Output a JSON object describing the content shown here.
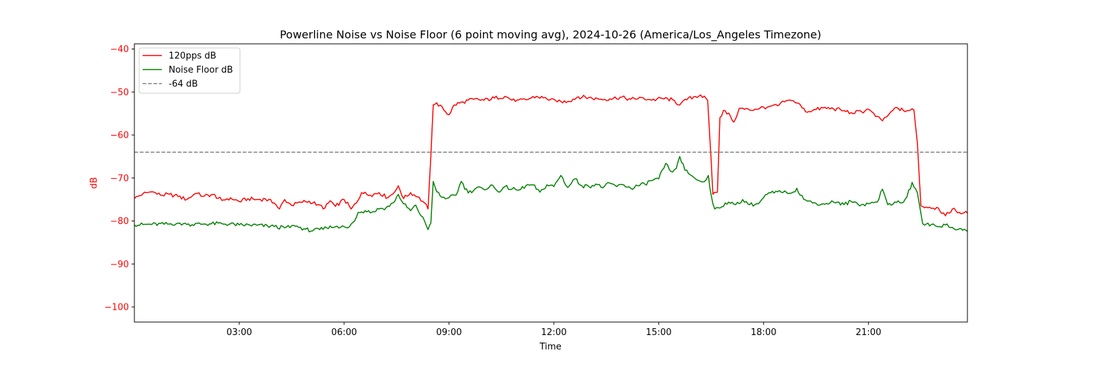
{
  "chart_data": {
    "type": "line",
    "title": "Powerline Noise vs Noise Floor (6 point moving avg), 2024-10-26 (America/Los_Angeles Timezone)",
    "xlabel": "Time",
    "ylabel": "dB",
    "x_unit": "hours of day",
    "xlim": [
      0,
      23.83
    ],
    "ylim": [
      -103.5,
      -38.8
    ],
    "x_ticks": [
      {
        "value": 3,
        "label": "03:00"
      },
      {
        "value": 6,
        "label": "06:00"
      },
      {
        "value": 9,
        "label": "09:00"
      },
      {
        "value": 12,
        "label": "12:00"
      },
      {
        "value": 15,
        "label": "15:00"
      },
      {
        "value": 18,
        "label": "18:00"
      },
      {
        "value": 21,
        "label": "21:00"
      }
    ],
    "y_ticks": [
      {
        "value": -40,
        "label": "−40"
      },
      {
        "value": -50,
        "label": "−50"
      },
      {
        "value": -60,
        "label": "−60"
      },
      {
        "value": -70,
        "label": "−70"
      },
      {
        "value": -80,
        "label": "−80"
      },
      {
        "value": -90,
        "label": "−90"
      },
      {
        "value": -100,
        "label": "−100"
      }
    ],
    "grid": false,
    "legend_position": "top-left",
    "colors": {
      "ylabel": "#ff0000",
      "axis": "#000000"
    },
    "series": [
      {
        "name": "120pps dB",
        "color": "#ff0000",
        "style": "solid",
        "points": [
          [
            0.0,
            -74.8
          ],
          [
            0.25,
            -73.6
          ],
          [
            0.5,
            -73.2
          ],
          [
            0.75,
            -74.0
          ],
          [
            1.0,
            -73.8
          ],
          [
            1.25,
            -74.3
          ],
          [
            1.5,
            -75.0
          ],
          [
            1.75,
            -73.6
          ],
          [
            2.0,
            -74.2
          ],
          [
            2.25,
            -73.8
          ],
          [
            2.5,
            -75.2
          ],
          [
            2.75,
            -74.6
          ],
          [
            3.0,
            -75.5
          ],
          [
            3.25,
            -74.8
          ],
          [
            3.5,
            -75.0
          ],
          [
            3.75,
            -74.9
          ],
          [
            4.0,
            -75.8
          ],
          [
            4.15,
            -77.2
          ],
          [
            4.3,
            -75.0
          ],
          [
            4.5,
            -76.4
          ],
          [
            4.75,
            -75.6
          ],
          [
            5.0,
            -75.4
          ],
          [
            5.25,
            -76.2
          ],
          [
            5.45,
            -77.0
          ],
          [
            5.6,
            -75.3
          ],
          [
            5.75,
            -76.6
          ],
          [
            6.0,
            -75.0
          ],
          [
            6.2,
            -77.2
          ],
          [
            6.35,
            -75.8
          ],
          [
            6.5,
            -73.4
          ],
          [
            6.75,
            -74.0
          ],
          [
            7.0,
            -73.4
          ],
          [
            7.25,
            -74.6
          ],
          [
            7.45,
            -73.2
          ],
          [
            7.55,
            -71.8
          ],
          [
            7.7,
            -74.8
          ],
          [
            7.9,
            -73.4
          ],
          [
            8.1,
            -74.4
          ],
          [
            8.3,
            -75.8
          ],
          [
            8.4,
            -77.2
          ],
          [
            8.48,
            -65.0
          ],
          [
            8.55,
            -53.0
          ],
          [
            8.65,
            -52.5
          ],
          [
            8.85,
            -54.2
          ],
          [
            9.0,
            -55.3
          ],
          [
            9.15,
            -53.0
          ],
          [
            9.4,
            -52.3
          ],
          [
            9.7,
            -51.7
          ],
          [
            10.0,
            -51.9
          ],
          [
            10.3,
            -51.4
          ],
          [
            10.6,
            -51.0
          ],
          [
            10.9,
            -52.2
          ],
          [
            11.2,
            -51.8
          ],
          [
            11.5,
            -51.0
          ],
          [
            11.8,
            -51.6
          ],
          [
            12.1,
            -52.3
          ],
          [
            12.4,
            -52.2
          ],
          [
            12.7,
            -51.1
          ],
          [
            13.0,
            -51.3
          ],
          [
            13.3,
            -51.7
          ],
          [
            13.6,
            -51.6
          ],
          [
            13.9,
            -51.2
          ],
          [
            14.2,
            -51.7
          ],
          [
            14.5,
            -51.3
          ],
          [
            14.8,
            -51.9
          ],
          [
            15.1,
            -51.5
          ],
          [
            15.4,
            -51.8
          ],
          [
            15.6,
            -53.0
          ],
          [
            15.8,
            -51.8
          ],
          [
            16.0,
            -51.1
          ],
          [
            16.2,
            -50.7
          ],
          [
            16.4,
            -52.0
          ],
          [
            16.5,
            -66.0
          ],
          [
            16.55,
            -73.8
          ],
          [
            16.68,
            -73.3
          ],
          [
            16.75,
            -56.0
          ],
          [
            16.85,
            -54.3
          ],
          [
            17.05,
            -55.6
          ],
          [
            17.15,
            -57.0
          ],
          [
            17.3,
            -53.8
          ],
          [
            17.6,
            -54.2
          ],
          [
            17.9,
            -53.7
          ],
          [
            18.15,
            -53.4
          ],
          [
            18.4,
            -53.2
          ],
          [
            18.6,
            -52.3
          ],
          [
            18.8,
            -52.0
          ],
          [
            19.0,
            -52.6
          ],
          [
            19.2,
            -54.6
          ],
          [
            19.4,
            -54.3
          ],
          [
            19.7,
            -53.7
          ],
          [
            20.0,
            -53.9
          ],
          [
            20.3,
            -54.3
          ],
          [
            20.5,
            -54.8
          ],
          [
            20.8,
            -54.6
          ],
          [
            21.0,
            -54.0
          ],
          [
            21.2,
            -55.7
          ],
          [
            21.4,
            -56.7
          ],
          [
            21.6,
            -55.0
          ],
          [
            21.8,
            -53.6
          ],
          [
            22.0,
            -54.3
          ],
          [
            22.3,
            -54.2
          ],
          [
            22.4,
            -62.0
          ],
          [
            22.5,
            -76.5
          ],
          [
            22.75,
            -76.8
          ],
          [
            23.0,
            -77.0
          ],
          [
            23.2,
            -78.8
          ],
          [
            23.4,
            -77.2
          ],
          [
            23.6,
            -78.0
          ],
          [
            23.83,
            -78.2
          ]
        ]
      },
      {
        "name": "Noise Floor dB",
        "color": "#008000",
        "style": "solid",
        "points": [
          [
            0.0,
            -80.9
          ],
          [
            0.5,
            -80.8
          ],
          [
            1.0,
            -80.7
          ],
          [
            1.25,
            -80.5
          ],
          [
            1.5,
            -80.8
          ],
          [
            2.0,
            -80.7
          ],
          [
            2.5,
            -80.6
          ],
          [
            3.0,
            -80.9
          ],
          [
            3.5,
            -81.0
          ],
          [
            4.0,
            -81.3
          ],
          [
            4.3,
            -81.6
          ],
          [
            4.6,
            -81.2
          ],
          [
            4.9,
            -81.9
          ],
          [
            5.1,
            -82.3
          ],
          [
            5.3,
            -82.0
          ],
          [
            5.5,
            -81.6
          ],
          [
            5.8,
            -81.2
          ],
          [
            6.1,
            -81.6
          ],
          [
            6.3,
            -80.0
          ],
          [
            6.4,
            -78.0
          ],
          [
            6.6,
            -77.6
          ],
          [
            6.8,
            -77.9
          ],
          [
            7.0,
            -77.2
          ],
          [
            7.2,
            -76.9
          ],
          [
            7.4,
            -75.8
          ],
          [
            7.55,
            -73.8
          ],
          [
            7.7,
            -76.0
          ],
          [
            7.9,
            -77.6
          ],
          [
            8.05,
            -76.3
          ],
          [
            8.2,
            -78.8
          ],
          [
            8.3,
            -80.0
          ],
          [
            8.4,
            -82.0
          ],
          [
            8.48,
            -80.5
          ],
          [
            8.55,
            -70.8
          ],
          [
            8.65,
            -73.2
          ],
          [
            8.8,
            -74.5
          ],
          [
            9.0,
            -74.6
          ],
          [
            9.2,
            -74.0
          ],
          [
            9.35,
            -70.8
          ],
          [
            9.55,
            -73.5
          ],
          [
            9.8,
            -72.2
          ],
          [
            10.0,
            -72.7
          ],
          [
            10.2,
            -71.6
          ],
          [
            10.4,
            -73.2
          ],
          [
            10.6,
            -72.0
          ],
          [
            10.8,
            -72.6
          ],
          [
            11.0,
            -72.8
          ],
          [
            11.2,
            -71.8
          ],
          [
            11.4,
            -71.6
          ],
          [
            11.6,
            -73.3
          ],
          [
            11.8,
            -71.6
          ],
          [
            12.0,
            -72.0
          ],
          [
            12.2,
            -69.4
          ],
          [
            12.4,
            -72.2
          ],
          [
            12.6,
            -70.2
          ],
          [
            12.8,
            -71.8
          ],
          [
            13.0,
            -72.0
          ],
          [
            13.2,
            -71.4
          ],
          [
            13.4,
            -72.3
          ],
          [
            13.6,
            -71.2
          ],
          [
            13.8,
            -72.0
          ],
          [
            14.0,
            -71.6
          ],
          [
            14.2,
            -72.4
          ],
          [
            14.4,
            -71.8
          ],
          [
            14.6,
            -71.4
          ],
          [
            14.8,
            -70.6
          ],
          [
            15.0,
            -70.2
          ],
          [
            15.2,
            -66.6
          ],
          [
            15.35,
            -68.5
          ],
          [
            15.5,
            -67.8
          ],
          [
            15.6,
            -65.0
          ],
          [
            15.75,
            -68.2
          ],
          [
            15.95,
            -69.5
          ],
          [
            16.15,
            -70.6
          ],
          [
            16.3,
            -70.9
          ],
          [
            16.42,
            -69.4
          ],
          [
            16.5,
            -74.0
          ],
          [
            16.6,
            -77.2
          ],
          [
            16.75,
            -77.0
          ],
          [
            16.9,
            -75.8
          ],
          [
            17.2,
            -76.2
          ],
          [
            17.4,
            -75.0
          ],
          [
            17.6,
            -76.2
          ],
          [
            17.85,
            -76.0
          ],
          [
            18.1,
            -73.8
          ],
          [
            18.4,
            -73.2
          ],
          [
            18.6,
            -73.0
          ],
          [
            18.8,
            -73.5
          ],
          [
            18.95,
            -72.4
          ],
          [
            19.15,
            -75.0
          ],
          [
            19.4,
            -75.8
          ],
          [
            19.7,
            -76.0
          ],
          [
            20.0,
            -75.6
          ],
          [
            20.3,
            -76.2
          ],
          [
            20.5,
            -75.4
          ],
          [
            20.8,
            -76.2
          ],
          [
            21.0,
            -76.0
          ],
          [
            21.25,
            -75.6
          ],
          [
            21.4,
            -72.6
          ],
          [
            21.55,
            -76.2
          ],
          [
            21.75,
            -75.6
          ],
          [
            21.95,
            -75.8
          ],
          [
            22.1,
            -74.4
          ],
          [
            22.25,
            -71.0
          ],
          [
            22.4,
            -73.5
          ],
          [
            22.55,
            -80.6
          ],
          [
            22.8,
            -80.8
          ],
          [
            23.0,
            -81.3
          ],
          [
            23.2,
            -80.9
          ],
          [
            23.4,
            -81.5
          ],
          [
            23.6,
            -81.8
          ],
          [
            23.83,
            -82.4
          ]
        ]
      },
      {
        "name": "-64 dB",
        "color": "#808080",
        "style": "dashed",
        "points": [
          [
            0.0,
            -64
          ],
          [
            23.83,
            -64
          ]
        ]
      }
    ]
  }
}
